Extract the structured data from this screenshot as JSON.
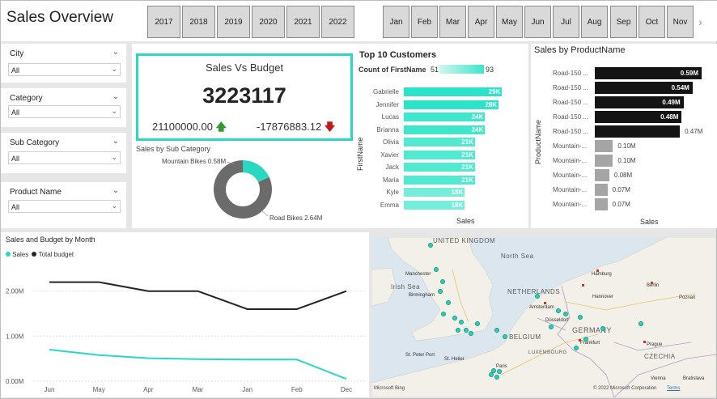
{
  "header": {
    "title": "Sales Overview"
  },
  "years": [
    "2017",
    "2018",
    "2019",
    "2020",
    "2021",
    "2022"
  ],
  "months": [
    "Jan",
    "Feb",
    "Mar",
    "Apr",
    "May",
    "Jun",
    "Jul",
    "Aug",
    "Sep",
    "Oct",
    "Nov"
  ],
  "filters": [
    {
      "label": "City",
      "value": "All"
    },
    {
      "label": "Category",
      "value": "All"
    },
    {
      "label": "Sub Category",
      "value": "All"
    },
    {
      "label": "Product Name",
      "value": "All"
    }
  ],
  "kpi": {
    "title": "Sales Vs Budget",
    "value": "3223117",
    "left_value": "21100000.00",
    "right_value": "-17876883.12"
  },
  "donut": {
    "title": "Sales by Sub Category",
    "label_a": "Mountain Bikes 0.58M",
    "label_b": "Road Bikes 2.64M"
  },
  "customers": {
    "title": "Top 10 Customers",
    "legend_title": "Count of FirstName",
    "legend_min": "51",
    "legend_max": "93",
    "ylabel": "FirstName",
    "xlabel": "Sales"
  },
  "products": {
    "title": "Sales by ProductName",
    "ylabel": "ProductName",
    "xlabel": "Sales"
  },
  "linechart": {
    "title": "Sales and Budget by Month",
    "legend_sales": "Sales",
    "legend_budget": "Total budget"
  },
  "map": {
    "attribution": "© 2022 Microsoft Corporation",
    "terms": "Terms",
    "logo": "Microsoft Bing",
    "labels": [
      "UNITED KINGDOM",
      "North Sea",
      "Irish Sea",
      "NETHERLANDS",
      "BELGIUM",
      "GERMANY",
      "LUXEMBOURG",
      "CZECHIA",
      "Manchester",
      "Birmingham",
      "Hamburg",
      "Berlin",
      "Hannover",
      "Amsterdam",
      "Düsseldorf",
      "Frankfurt",
      "Paris",
      "Prague",
      "St. Helier",
      "St. Peter Port",
      "Vienna",
      "Bratislava",
      "Poznań"
    ]
  },
  "colors": {
    "accent": "#2ad7c1",
    "kpi_up": "#2e9c2e",
    "kpi_down": "#c0191c",
    "budget_line": "#252423",
    "bar_dark": "#141414",
    "bar_gray": "#a5a5a5"
  },
  "chart_data": [
    {
      "type": "bar",
      "title": "Top 10 Customers",
      "xlabel": "Sales",
      "ylabel": "FirstName",
      "categories": [
        "Gabrielle",
        "Jennifer",
        "Lucas",
        "Brianna",
        "Olivia",
        "Xavier",
        "Jack",
        "Maria",
        "Kyle",
        "Emma"
      ],
      "values": [
        29,
        28,
        24,
        24,
        21,
        21,
        21,
        21,
        18,
        18
      ],
      "labels": [
        "29K",
        "28K",
        "24K",
        "24K",
        "21K",
        "21K",
        "21K",
        "21K",
        "18K",
        "18K"
      ]
    },
    {
      "type": "bar",
      "title": "Sales by ProductName",
      "xlabel": "Sales",
      "ylabel": "ProductName",
      "categories": [
        "Road-150 ...",
        "Road-150 ...",
        "Road-150 ...",
        "Road-150 ...",
        "Road-150 ...",
        "Mountain-...",
        "Mountain-...",
        "Mountain-...",
        "Mountain-...",
        "Mountain-..."
      ],
      "values": [
        0.59,
        0.54,
        0.49,
        0.48,
        0.47,
        0.1,
        0.1,
        0.08,
        0.07,
        0.07
      ],
      "labels": [
        "0.59M",
        "0.54M",
        "0.49M",
        "0.48M",
        "0.47M",
        "0.10M",
        "0.10M",
        "0.08M",
        "0.07M",
        "0.07M"
      ]
    },
    {
      "type": "pie",
      "title": "Sales by Sub Category",
      "categories": [
        "Mountain Bikes",
        "Road Bikes"
      ],
      "values": [
        0.58,
        2.64
      ]
    },
    {
      "type": "line",
      "title": "Sales and Budget by Month",
      "categories": [
        "Jun",
        "May",
        "Apr",
        "Mar",
        "Jan",
        "Feb",
        "Dec"
      ],
      "series": [
        {
          "name": "Sales",
          "values": [
            0.7,
            0.58,
            0.51,
            0.49,
            0.48,
            0.48,
            0.05
          ]
        },
        {
          "name": "Total budget",
          "values": [
            2.2,
            2.2,
            2.0,
            2.0,
            1.6,
            1.6,
            2.0
          ]
        }
      ],
      "yticks": [
        "0.00M",
        "1.00M",
        "2.00M"
      ],
      "ylim": [
        0,
        2.3
      ]
    }
  ]
}
